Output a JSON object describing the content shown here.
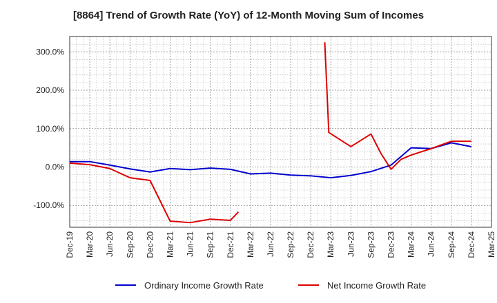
{
  "chart_data": {
    "type": "line",
    "title": "[8864]  Trend of Growth Rate (YoY) of 12-Month Moving Sum of Incomes",
    "xlabel": "",
    "ylabel": "",
    "x_tick_labels": [
      "Dec-19",
      "Mar-20",
      "Jun-20",
      "Sep-20",
      "Dec-20",
      "Mar-21",
      "Jun-21",
      "Sep-21",
      "Dec-21",
      "Mar-22",
      "Jun-22",
      "Sep-22",
      "Dec-22",
      "Mar-23",
      "Jun-23",
      "Sep-23",
      "Dec-23",
      "Mar-24",
      "Jun-24",
      "Sep-24",
      "Dec-24",
      "Mar-25"
    ],
    "y_ticks": [
      300,
      200,
      100,
      0,
      -100
    ],
    "y_tick_labels": [
      "300.0%",
      "200.0%",
      "100.0%",
      "0.0%",
      "-100.0%"
    ],
    "ylim": [
      -157,
      340
    ],
    "grid": true,
    "legend_position": "bottom",
    "series": [
      {
        "name": "Ordinary Income Growth Rate",
        "color": "#0000cc",
        "x_index": [
          0,
          1,
          2,
          3,
          4,
          5,
          6,
          7,
          8,
          9,
          10,
          11,
          12,
          13,
          14,
          15,
          16,
          17,
          18,
          19,
          20
        ],
        "values": [
          14,
          14,
          5,
          -5,
          -13,
          -4,
          -7,
          -3,
          -6,
          -18,
          -16,
          -21,
          -23,
          -28,
          -22,
          -12,
          5,
          50,
          48,
          63,
          53
        ]
      },
      {
        "name": "Net Income Growth Rate",
        "color": "#dd0000",
        "x_index": [
          0,
          1,
          2,
          3,
          4,
          5,
          6,
          7,
          8,
          8.4,
          null,
          12.7,
          12.9,
          14,
          15,
          15.5,
          16,
          16.5,
          17,
          18,
          19,
          20
        ],
        "values": [
          10,
          6,
          -4,
          -28,
          -35,
          -141,
          -145,
          -136,
          -139,
          -117,
          null,
          325,
          90,
          53,
          86,
          35,
          -6,
          20,
          31,
          48,
          67,
          67
        ]
      }
    ]
  }
}
